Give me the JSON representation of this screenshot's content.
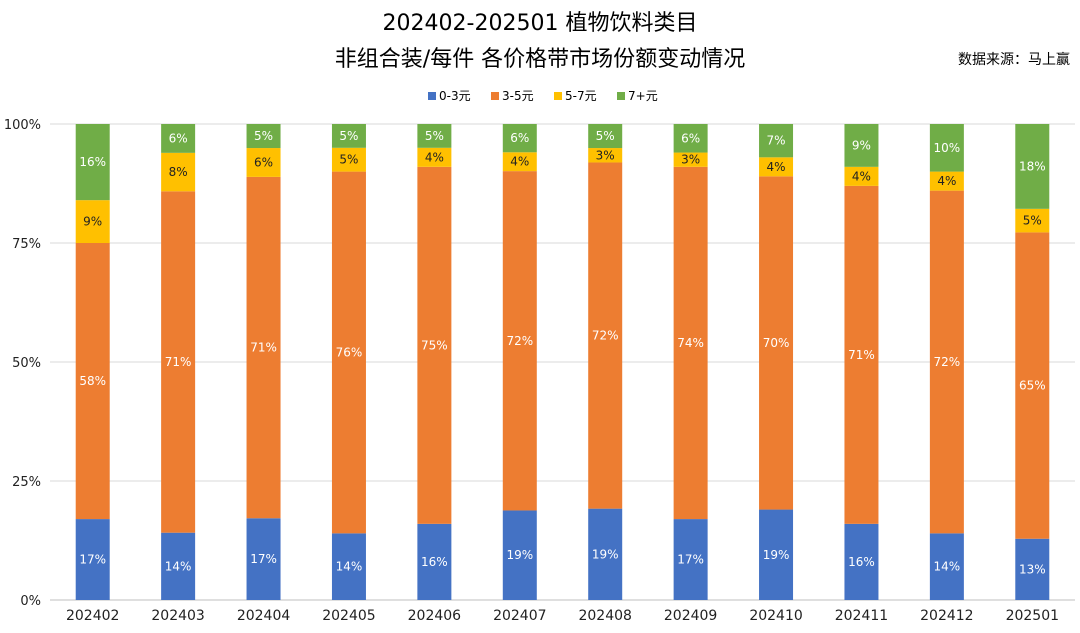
{
  "chart_data": {
    "type": "bar",
    "stacked": "percent",
    "title": "202402-202501 植物饮料类目",
    "subtitle": "非组合装/每件 各价格带市场份额变动情况",
    "source": "数据来源：马上赢",
    "legend_position": "top",
    "categories": [
      "202402",
      "202403",
      "202404",
      "202405",
      "202406",
      "202407",
      "202408",
      "202409",
      "202410",
      "202411",
      "202412",
      "202501"
    ],
    "ylim": [
      0,
      100
    ],
    "yticks": [
      "0%",
      "25%",
      "50%",
      "75%",
      "100%"
    ],
    "grid": true,
    "series": [
      {
        "name": "0-3元",
        "color": "#4472C4",
        "values": [
          17,
          14,
          17,
          14,
          16,
          19,
          19,
          17,
          19,
          16,
          14,
          13
        ]
      },
      {
        "name": "3-5元",
        "color": "#ED7D31",
        "values": [
          58,
          71,
          71,
          76,
          75,
          72,
          72,
          74,
          70,
          71,
          72,
          65
        ]
      },
      {
        "name": "5-7元",
        "color": "#FFC000",
        "values": [
          9,
          8,
          6,
          5,
          4,
          4,
          3,
          3,
          4,
          4,
          4,
          5
        ]
      },
      {
        "name": "7+元",
        "color": "#70AD47",
        "values": [
          16,
          6,
          5,
          5,
          5,
          6,
          5,
          6,
          7,
          9,
          10,
          18
        ]
      }
    ]
  }
}
